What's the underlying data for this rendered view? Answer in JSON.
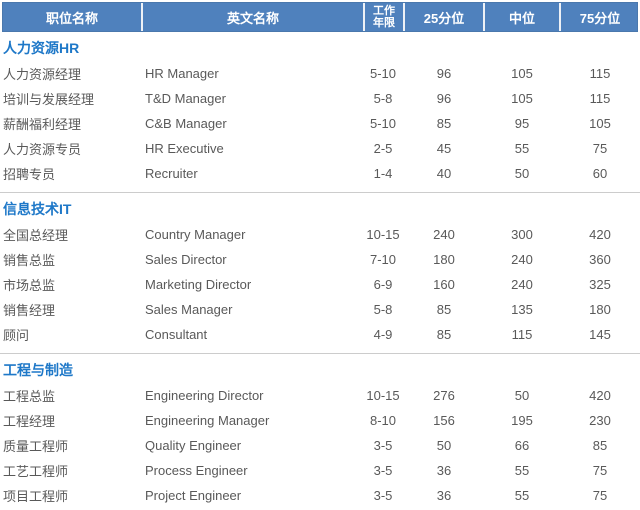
{
  "header": {
    "position_cn": "职位名称",
    "position_en": "英文名称",
    "years_line1": "工作",
    "years_line2": "年限",
    "p25": "25分位",
    "median": "中位",
    "p75": "75分位"
  },
  "chart_data": {
    "type": "table",
    "columns": [
      "职位名称",
      "英文名称",
      "工作年限",
      "25分位",
      "中位",
      "75分位"
    ],
    "sections": [
      {
        "title": "人力资源HR",
        "rows": [
          [
            "人力资源经理",
            "HR Manager",
            "5-10",
            96,
            105,
            115
          ],
          [
            "培训与发展经理",
            "T&D Manager",
            "5-8",
            96,
            105,
            115
          ],
          [
            "薪酬福利经理",
            "C&B Manager",
            "5-10",
            85,
            95,
            105
          ],
          [
            "人力资源专员",
            "HR Executive",
            "2-5",
            45,
            55,
            75
          ],
          [
            "招聘专员",
            "Recruiter",
            "1-4",
            40,
            50,
            60
          ]
        ]
      },
      {
        "title": "信息技术IT",
        "rows": [
          [
            "全国总经理",
            "Country Manager",
            "10-15",
            240,
            300,
            420
          ],
          [
            "销售总监",
            "Sales Director",
            "7-10",
            180,
            240,
            360
          ],
          [
            "市场总监",
            "Marketing Director",
            "6-9",
            160,
            240,
            325
          ],
          [
            "销售经理",
            "Sales Manager",
            "5-8",
            85,
            135,
            180
          ],
          [
            "顾问",
            "Consultant",
            "4-9",
            85,
            115,
            145
          ]
        ]
      },
      {
        "title": "工程与制造",
        "rows": [
          [
            "工程总监",
            "Engineering Director",
            "10-15",
            276,
            50,
            420
          ],
          [
            "工程经理",
            "Engineering Manager",
            "8-10",
            156,
            195,
            230
          ],
          [
            "质量工程师",
            "Quality Engineer",
            "3-5",
            50,
            66,
            85
          ],
          [
            "工艺工程师",
            "Process Engineer",
            "3-5",
            36,
            55,
            75
          ],
          [
            "项目工程师",
            "Project Engineer",
            "3-5",
            36,
            55,
            75
          ]
        ]
      }
    ]
  },
  "colors": {
    "header_bg": "#4f81bd",
    "header_text": "#ffffff",
    "section_title": "#1e78c8",
    "body_text": "#595959",
    "divider": "#cccccc"
  }
}
